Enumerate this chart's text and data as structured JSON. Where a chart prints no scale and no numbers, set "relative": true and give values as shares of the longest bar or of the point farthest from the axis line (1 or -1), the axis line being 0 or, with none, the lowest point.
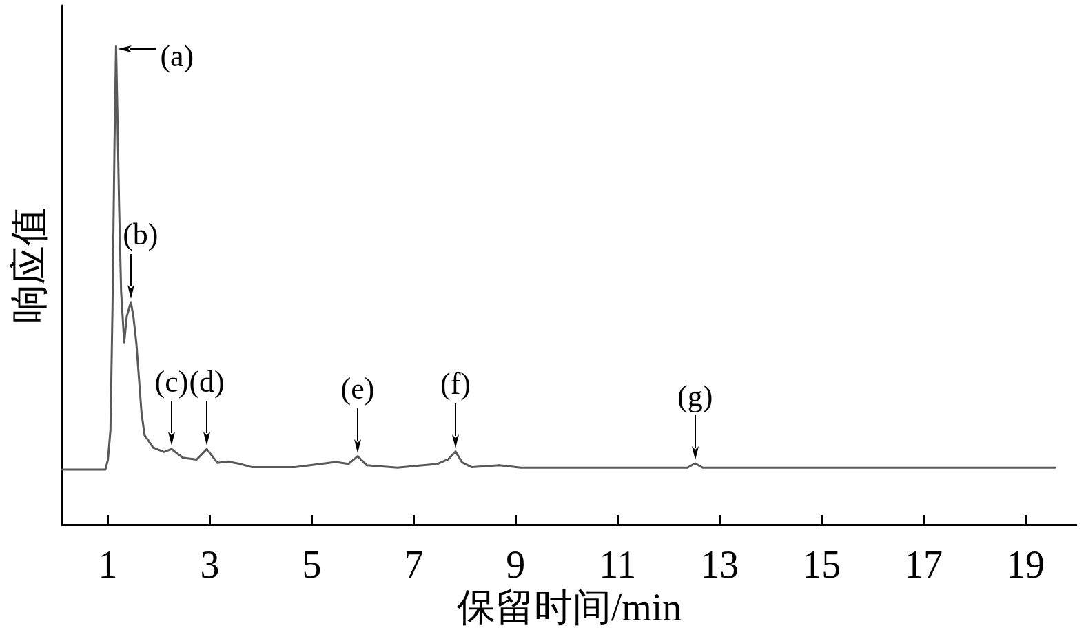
{
  "chart_data": {
    "type": "line",
    "relative": true,
    "xlabel": "保留时间/min",
    "ylabel": "响应值",
    "color": "#595959",
    "marker": "none",
    "x": [
      0.1,
      0.95,
      1.0,
      1.05,
      1.09,
      1.13,
      1.16,
      1.19,
      1.22,
      1.26,
      1.32,
      1.37,
      1.45,
      1.5,
      1.56,
      1.66,
      1.72,
      1.89,
      2.1,
      2.25,
      2.47,
      2.74,
      2.94,
      3.15,
      3.35,
      3.59,
      3.83,
      4.67,
      5.47,
      5.72,
      5.9,
      6.08,
      6.68,
      7.47,
      7.68,
      7.82,
      7.95,
      8.14,
      8.68,
      9.1,
      12.37,
      12.52,
      12.67,
      19.58
    ],
    "values": [
      0.115,
      0.115,
      0.135,
      0.197,
      0.449,
      0.8,
      1.0,
      0.84,
      0.665,
      0.485,
      0.381,
      0.435,
      0.465,
      0.435,
      0.377,
      0.233,
      0.187,
      0.161,
      0.152,
      0.158,
      0.14,
      0.136,
      0.158,
      0.129,
      0.132,
      0.127,
      0.12,
      0.12,
      0.131,
      0.127,
      0.143,
      0.124,
      0.119,
      0.127,
      0.137,
      0.153,
      0.13,
      0.12,
      0.124,
      0.119,
      0.119,
      0.128,
      0.119,
      0.119
    ],
    "xlim": [
      0.1,
      20
    ],
    "xticks": [
      1,
      3,
      5,
      7,
      9,
      11,
      13,
      15,
      17,
      19
    ],
    "annotations": [
      {
        "text": "(a)",
        "x": 1.16,
        "y": 1.0
      },
      {
        "text": "(b)",
        "x": 1.45,
        "y": 0.465
      },
      {
        "text": "(c)",
        "x": 2.25,
        "y": 0.158
      },
      {
        "text": "(d)",
        "x": 2.94,
        "y": 0.158
      },
      {
        "text": "(e)",
        "x": 5.9,
        "y": 0.143
      },
      {
        "text": "(f)",
        "x": 7.82,
        "y": 0.153
      },
      {
        "text": "(g)",
        "x": 12.52,
        "y": 0.128
      }
    ]
  }
}
